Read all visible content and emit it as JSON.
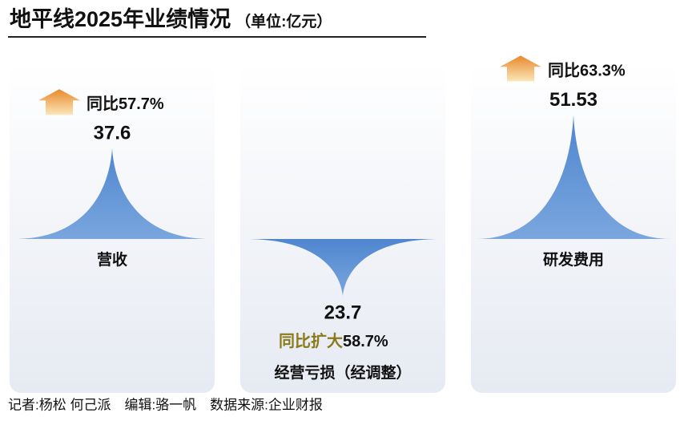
{
  "chart_data": {
    "type": "spike",
    "title": "地平线2025年业绩情况",
    "subtitle": "（单位:亿元）",
    "categories": [
      "营收",
      "经营亏损（经调整）",
      "研发费用"
    ],
    "values": [
      37.6,
      23.7,
      51.53
    ],
    "directions": [
      "up",
      "down",
      "up"
    ],
    "changes": [
      {
        "prefix": "同比",
        "rate": "57.7%"
      },
      {
        "prefix": "同比扩大",
        "rate": "58.7%"
      },
      {
        "prefix": "同比",
        "rate": "63.3%"
      }
    ],
    "color": "#5b8fd3"
  },
  "footer": "记者:杨松 何己派　编辑:骆一帆　数据来源:企业财报"
}
